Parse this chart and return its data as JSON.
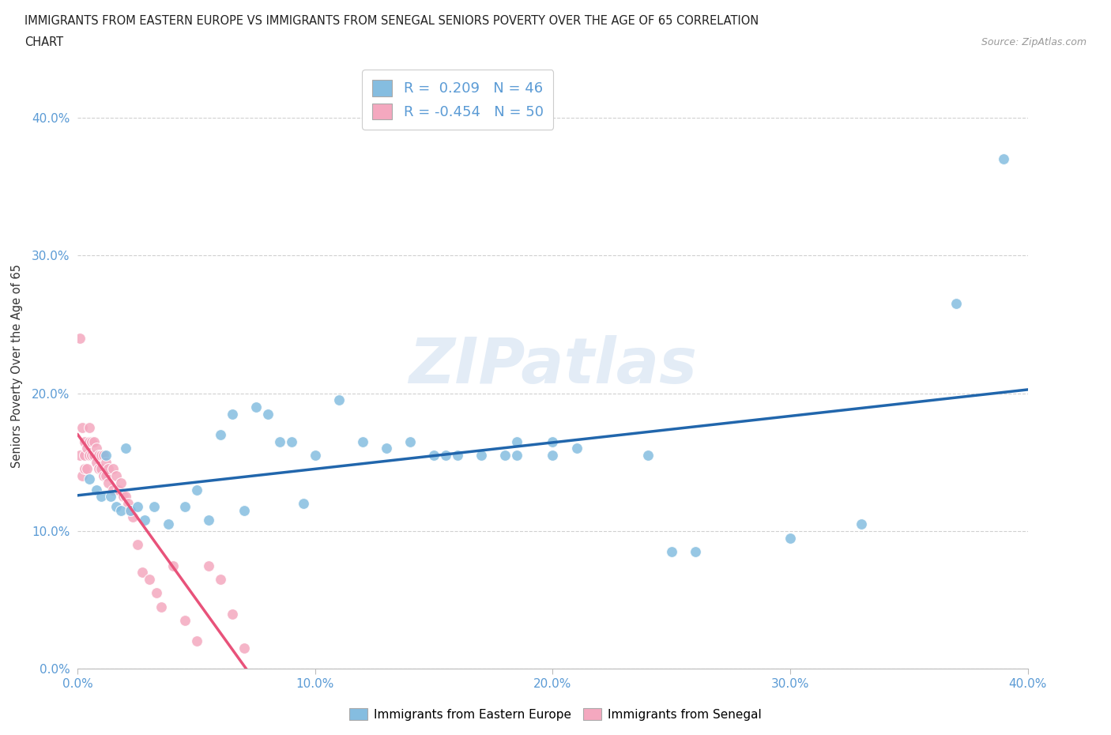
{
  "title_line1": "IMMIGRANTS FROM EASTERN EUROPE VS IMMIGRANTS FROM SENEGAL SENIORS POVERTY OVER THE AGE OF 65 CORRELATION",
  "title_line2": "CHART",
  "source": "Source: ZipAtlas.com",
  "ylabel": "Seniors Poverty Over the Age of 65",
  "watermark": "ZIPatlas",
  "legend_box": {
    "blue_r": "0.209",
    "blue_n": "46",
    "pink_r": "-0.454",
    "pink_n": "50"
  },
  "blue_color": "#85bde0",
  "pink_color": "#f4a8bf",
  "blue_line_color": "#2166ac",
  "pink_line_color": "#e8527a",
  "xlim": [
    0.0,
    0.4
  ],
  "ylim": [
    0.0,
    0.44
  ],
  "xticks": [
    0.0,
    0.1,
    0.2,
    0.3,
    0.4
  ],
  "ytick_labels": [
    "0.0%",
    "10.0%",
    "20.0%",
    "30.0%",
    "40.0%"
  ],
  "ytick_positions": [
    0.0,
    0.1,
    0.2,
    0.3,
    0.4
  ],
  "blue_scatter_x": [
    0.005,
    0.008,
    0.01,
    0.012,
    0.014,
    0.016,
    0.018,
    0.02,
    0.022,
    0.025,
    0.028,
    0.032,
    0.038,
    0.045,
    0.05,
    0.055,
    0.06,
    0.065,
    0.07,
    0.075,
    0.08,
    0.085,
    0.09,
    0.095,
    0.1,
    0.11,
    0.12,
    0.13,
    0.14,
    0.15,
    0.155,
    0.16,
    0.17,
    0.18,
    0.185,
    0.185,
    0.2,
    0.2,
    0.21,
    0.24,
    0.25,
    0.26,
    0.3,
    0.33,
    0.37,
    0.39
  ],
  "blue_scatter_y": [
    0.138,
    0.13,
    0.125,
    0.155,
    0.125,
    0.118,
    0.115,
    0.16,
    0.115,
    0.118,
    0.108,
    0.118,
    0.105,
    0.118,
    0.13,
    0.108,
    0.17,
    0.185,
    0.115,
    0.19,
    0.185,
    0.165,
    0.165,
    0.12,
    0.155,
    0.195,
    0.165,
    0.16,
    0.165,
    0.155,
    0.155,
    0.155,
    0.155,
    0.155,
    0.165,
    0.155,
    0.155,
    0.165,
    0.16,
    0.155,
    0.085,
    0.085,
    0.095,
    0.105,
    0.265,
    0.37
  ],
  "pink_scatter_x": [
    0.001,
    0.001,
    0.002,
    0.002,
    0.003,
    0.003,
    0.003,
    0.004,
    0.004,
    0.005,
    0.005,
    0.005,
    0.006,
    0.006,
    0.007,
    0.007,
    0.008,
    0.008,
    0.009,
    0.009,
    0.01,
    0.01,
    0.011,
    0.011,
    0.012,
    0.012,
    0.013,
    0.013,
    0.015,
    0.015,
    0.016,
    0.017,
    0.018,
    0.019,
    0.02,
    0.021,
    0.022,
    0.023,
    0.025,
    0.027,
    0.03,
    0.033,
    0.035,
    0.04,
    0.045,
    0.05,
    0.055,
    0.06,
    0.065,
    0.07
  ],
  "pink_scatter_y": [
    0.24,
    0.155,
    0.175,
    0.14,
    0.165,
    0.155,
    0.145,
    0.16,
    0.145,
    0.175,
    0.165,
    0.155,
    0.165,
    0.155,
    0.165,
    0.155,
    0.16,
    0.15,
    0.155,
    0.145,
    0.155,
    0.145,
    0.155,
    0.14,
    0.15,
    0.14,
    0.145,
    0.135,
    0.145,
    0.13,
    0.14,
    0.13,
    0.135,
    0.125,
    0.125,
    0.12,
    0.115,
    0.11,
    0.09,
    0.07,
    0.065,
    0.055,
    0.045,
    0.075,
    0.035,
    0.02,
    0.075,
    0.065,
    0.04,
    0.015
  ]
}
